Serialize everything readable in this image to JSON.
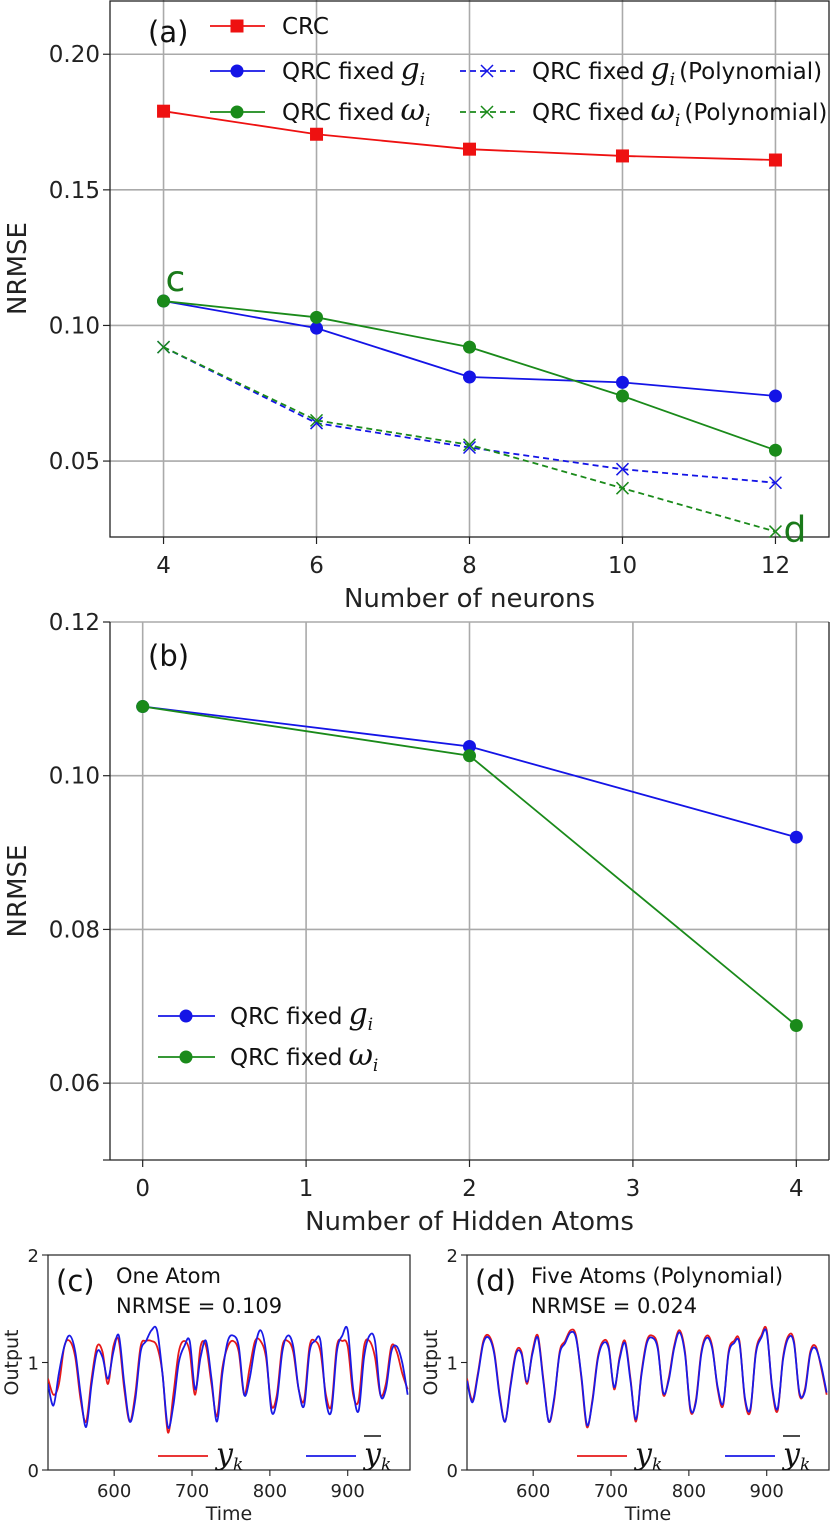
{
  "colors": {
    "crc": "#ee1111",
    "fixed_g": "#1414e6",
    "fixed_w": "#1a8a1a",
    "grid": "#aaaaaa",
    "target": "#e61a1a",
    "prediction": "#1a1ae6"
  },
  "chart_data": [
    {
      "id": "a",
      "type": "line",
      "panel_label": "(a)",
      "xlabel": "Number of neurons",
      "ylabel": "NRMSE",
      "x": [
        4,
        6,
        8,
        10,
        12
      ],
      "xlim": [
        3.3,
        12.7
      ],
      "ylim": [
        0.022,
        0.22
      ],
      "xticks": [
        "4",
        "6",
        "8",
        "10",
        "12"
      ],
      "yticks": [
        "0.05",
        "0.10",
        "0.15",
        "0.20"
      ],
      "grid": true,
      "legend_position": "top",
      "series": [
        {
          "name": "CRC",
          "marker": "square",
          "dash": false,
          "values": [
            0.179,
            0.1705,
            0.165,
            0.1625,
            0.161
          ]
        },
        {
          "name": "QRC fixed",
          "sym": "g",
          "sub": "i",
          "marker": "circle",
          "dash": false,
          "values": [
            0.109,
            0.099,
            0.081,
            0.079,
            0.074
          ]
        },
        {
          "name": "QRC fixed",
          "sym": "g",
          "sub": "i",
          "suffix": "(Polynomial)",
          "marker": "x",
          "dash": true,
          "values": [
            0.092,
            0.064,
            0.055,
            0.047,
            0.042
          ]
        },
        {
          "name": "QRC fixed",
          "sym": "ω",
          "sub": "i",
          "marker": "circle",
          "dash": false,
          "values": [
            0.109,
            0.103,
            0.092,
            0.074,
            0.054
          ]
        },
        {
          "name": "QRC fixed",
          "sym": "ω",
          "sub": "i",
          "suffix": "(Polynomial)",
          "marker": "x",
          "dash": true,
          "values": [
            0.092,
            0.065,
            0.056,
            0.04,
            0.024
          ]
        }
      ],
      "annotations": [
        {
          "text": "c",
          "x": 4,
          "y": 0.109
        },
        {
          "text": "d",
          "x": 12,
          "y": 0.024
        }
      ]
    },
    {
      "id": "b",
      "type": "line",
      "panel_label": "(b)",
      "xlabel": "Number of Hidden Atoms",
      "ylabel": "NRMSE",
      "x": [
        0,
        2,
        4
      ],
      "xlim": [
        -0.2,
        4.2
      ],
      "ylim": [
        0.05,
        0.12
      ],
      "xticks": [
        "0",
        "1",
        "2",
        "3",
        "4"
      ],
      "yticks": [
        "0.06",
        "0.08",
        "0.10",
        "0.12"
      ],
      "grid": true,
      "legend_position": "lower-left",
      "series": [
        {
          "name": "QRC fixed",
          "sym": "g",
          "sub": "i",
          "marker": "circle",
          "values": [
            0.109,
            0.1038,
            0.092
          ]
        },
        {
          "name": "QRC fixed",
          "sym": "ω",
          "sub": "i",
          "marker": "circle",
          "values": [
            0.109,
            0.1026,
            0.0675
          ]
        }
      ]
    },
    {
      "id": "c",
      "type": "line",
      "panel_label": "(c)",
      "text_line1": "One Atom",
      "text_line2": "NRMSE = 0.109",
      "xlabel": "Time",
      "ylabel": "Output",
      "xlim": [
        515,
        980
      ],
      "ylim": [
        0,
        2
      ],
      "xticks": [
        "600",
        "700",
        "800",
        "900"
      ],
      "yticks": [
        "0",
        "1",
        "2"
      ],
      "series": [
        {
          "name": "y",
          "sub": "k",
          "role": "target",
          "t": [
            515,
            522,
            529,
            536,
            543,
            550,
            557,
            564,
            571,
            578,
            585,
            592,
            599,
            606,
            613,
            620,
            627,
            634,
            641,
            648,
            655,
            662,
            669,
            676,
            683,
            690,
            697,
            704,
            711,
            718,
            725,
            732,
            739,
            746,
            753,
            760,
            767,
            774,
            781,
            788,
            795,
            802,
            809,
            816,
            823,
            830,
            837,
            844,
            851,
            858,
            865,
            872,
            879,
            886,
            893,
            900,
            907,
            914,
            921,
            928,
            935,
            942,
            949,
            956,
            963,
            970,
            977
          ],
          "values": [
            0.85,
            0.7,
            0.8,
            1.15,
            1.2,
            1.05,
            0.65,
            0.45,
            0.85,
            1.15,
            1.1,
            0.8,
            1.15,
            1.2,
            0.75,
            0.45,
            0.7,
            1.15,
            1.2,
            1.2,
            1.15,
            0.9,
            0.35,
            0.7,
            1.1,
            1.2,
            1.1,
            0.7,
            1.15,
            1.15,
            0.8,
            0.5,
            0.95,
            1.15,
            1.2,
            1.1,
            0.7,
            0.95,
            1.2,
            1.2,
            1.05,
            0.6,
            0.7,
            1.15,
            1.2,
            1.1,
            0.75,
            0.65,
            1.15,
            1.2,
            1.1,
            0.7,
            0.6,
            1.15,
            1.2,
            1.15,
            0.7,
            0.65,
            1.15,
            1.2,
            1.05,
            0.7,
            0.8,
            1.15,
            1.1,
            0.9,
            0.75
          ]
        },
        {
          "name": "y",
          "sub": "k",
          "bar": true,
          "role": "prediction",
          "t": [
            515,
            522,
            529,
            536,
            543,
            550,
            557,
            564,
            571,
            578,
            585,
            592,
            599,
            606,
            613,
            620,
            627,
            634,
            641,
            648,
            655,
            662,
            669,
            676,
            683,
            690,
            697,
            704,
            711,
            718,
            725,
            732,
            739,
            746,
            753,
            760,
            767,
            774,
            781,
            788,
            795,
            802,
            809,
            816,
            823,
            830,
            837,
            844,
            851,
            858,
            865,
            872,
            879,
            886,
            893,
            900,
            907,
            914,
            921,
            928,
            935,
            942,
            949,
            956,
            963,
            970,
            977
          ],
          "values": [
            0.8,
            0.6,
            0.9,
            1.15,
            1.25,
            1.1,
            0.7,
            0.4,
            0.8,
            1.1,
            1.05,
            0.85,
            1.1,
            1.25,
            0.8,
            0.45,
            0.65,
            1.1,
            1.2,
            1.3,
            1.3,
            0.9,
            0.4,
            0.6,
            1.0,
            1.15,
            1.2,
            0.75,
            1.05,
            1.2,
            0.85,
            0.45,
            0.9,
            1.2,
            1.25,
            1.15,
            0.7,
            0.85,
            1.15,
            1.3,
            1.1,
            0.55,
            0.65,
            1.1,
            1.25,
            1.15,
            0.75,
            0.6,
            1.1,
            1.2,
            1.2,
            0.65,
            0.55,
            1.1,
            1.25,
            1.3,
            0.75,
            0.55,
            1.05,
            1.25,
            1.2,
            0.7,
            0.75,
            1.1,
            1.15,
            1.0,
            0.7
          ]
        }
      ]
    },
    {
      "id": "d",
      "type": "line",
      "panel_label": "(d)",
      "text_line1": "Five Atoms (Polynomial)",
      "text_line2": "NRMSE = 0.024",
      "xlabel": "Time",
      "ylabel": "Output",
      "xlim": [
        515,
        980
      ],
      "ylim": [
        0,
        2
      ],
      "xticks": [
        "600",
        "700",
        "800",
        "900"
      ],
      "yticks": [
        "0",
        "1",
        "2"
      ],
      "series": [
        {
          "name": "y",
          "sub": "k",
          "role": "target",
          "t": [
            515,
            522,
            529,
            536,
            543,
            550,
            557,
            564,
            571,
            578,
            585,
            592,
            599,
            606,
            613,
            620,
            627,
            634,
            641,
            648,
            655,
            662,
            669,
            676,
            683,
            690,
            697,
            704,
            711,
            718,
            725,
            732,
            739,
            746,
            753,
            760,
            767,
            774,
            781,
            788,
            795,
            802,
            809,
            816,
            823,
            830,
            837,
            844,
            851,
            858,
            865,
            872,
            879,
            886,
            893,
            900,
            907,
            914,
            921,
            928,
            935,
            942,
            949,
            956,
            963,
            970,
            977
          ],
          "values": [
            0.85,
            0.65,
            0.9,
            1.2,
            1.25,
            1.1,
            0.7,
            0.45,
            0.8,
            1.1,
            1.1,
            0.8,
            1.1,
            1.25,
            0.85,
            0.45,
            0.65,
            1.1,
            1.2,
            1.3,
            1.25,
            0.85,
            0.4,
            0.65,
            1.05,
            1.2,
            1.15,
            0.75,
            1.05,
            1.2,
            0.85,
            0.45,
            0.9,
            1.2,
            1.25,
            1.15,
            0.7,
            0.85,
            1.15,
            1.3,
            1.1,
            0.55,
            0.65,
            1.1,
            1.25,
            1.15,
            0.75,
            0.6,
            1.1,
            1.2,
            1.2,
            0.65,
            0.55,
            1.1,
            1.25,
            1.3,
            0.75,
            0.55,
            1.05,
            1.25,
            1.2,
            0.7,
            0.75,
            1.1,
            1.15,
            0.95,
            0.7
          ]
        },
        {
          "name": "y",
          "sub": "k",
          "bar": true,
          "role": "prediction",
          "t": [
            515,
            522,
            529,
            536,
            543,
            550,
            557,
            564,
            571,
            578,
            585,
            592,
            599,
            606,
            613,
            620,
            627,
            634,
            641,
            648,
            655,
            662,
            669,
            676,
            683,
            690,
            697,
            704,
            711,
            718,
            725,
            732,
            739,
            746,
            753,
            760,
            767,
            774,
            781,
            788,
            795,
            802,
            809,
            816,
            823,
            830,
            837,
            844,
            851,
            858,
            865,
            872,
            879,
            886,
            893,
            900,
            907,
            914,
            921,
            928,
            935,
            942,
            949,
            956,
            963,
            970,
            977
          ],
          "values": [
            0.83,
            0.63,
            0.88,
            1.18,
            1.23,
            1.08,
            0.68,
            0.45,
            0.78,
            1.08,
            1.08,
            0.82,
            1.08,
            1.23,
            0.83,
            0.45,
            0.67,
            1.08,
            1.18,
            1.28,
            1.23,
            0.87,
            0.42,
            0.63,
            1.03,
            1.18,
            1.13,
            0.77,
            1.03,
            1.18,
            0.83,
            0.47,
            0.88,
            1.18,
            1.23,
            1.13,
            0.72,
            0.83,
            1.13,
            1.28,
            1.08,
            0.57,
            0.63,
            1.08,
            1.23,
            1.13,
            0.77,
            0.62,
            1.08,
            1.18,
            1.18,
            0.67,
            0.57,
            1.08,
            1.23,
            1.28,
            0.77,
            0.57,
            1.03,
            1.23,
            1.18,
            0.72,
            0.73,
            1.08,
            1.13,
            0.97,
            0.72
          ]
        }
      ]
    }
  ]
}
